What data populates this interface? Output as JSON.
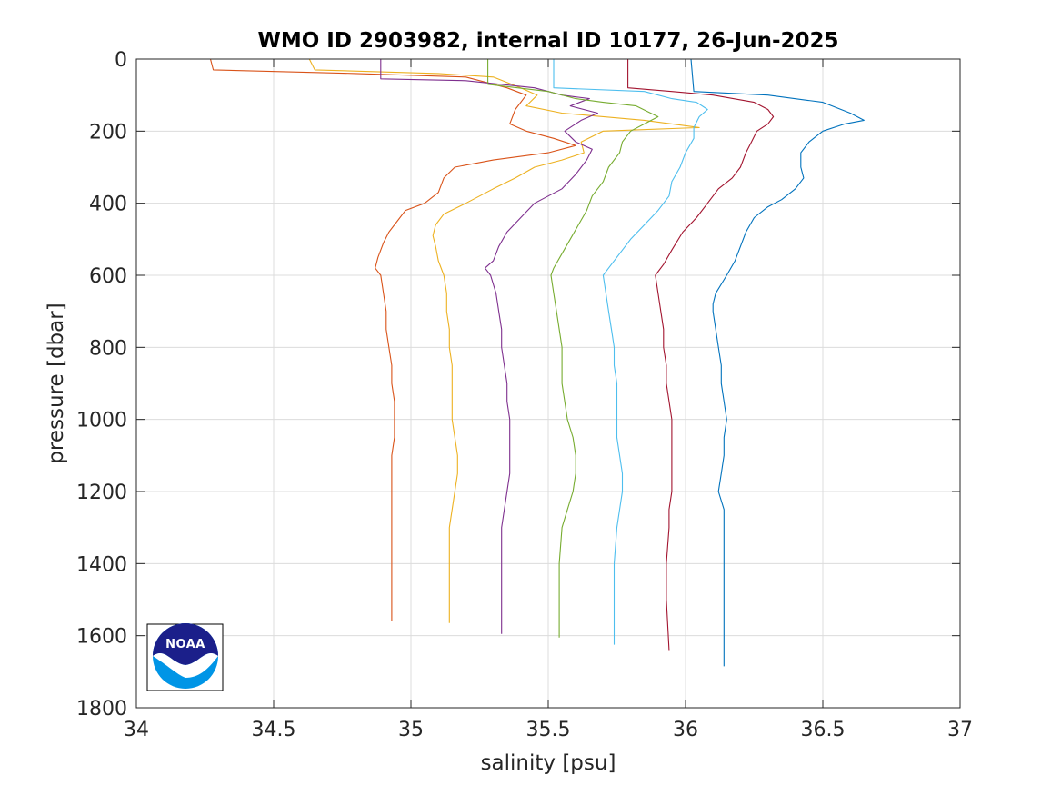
{
  "chart_data": {
    "type": "line",
    "title": "WMO ID 2903982, internal ID 10177, 26-Jun-2025",
    "xlabel": "salinity [psu]",
    "ylabel": "pressure [dbar]",
    "xlim": [
      34,
      37
    ],
    "ylim": [
      0,
      1800
    ],
    "y_reversed": true,
    "grid": true,
    "xticks": [
      "34",
      "34.5",
      "35",
      "35.5",
      "36",
      "36.5",
      "37"
    ],
    "yticks": [
      "0",
      "200",
      "400",
      "600",
      "800",
      "1000",
      "1200",
      "1400",
      "1600",
      "1800"
    ],
    "x_tick_values": [
      34,
      34.5,
      35,
      35.5,
      36,
      36.5,
      37
    ],
    "y_tick_values": [
      0,
      200,
      400,
      600,
      800,
      1000,
      1200,
      1400,
      1600,
      1800
    ],
    "series": [
      {
        "color": "#D95319",
        "points": [
          [
            34.27,
            0
          ],
          [
            34.28,
            30
          ],
          [
            34.8,
            40
          ],
          [
            35.2,
            50
          ],
          [
            35.35,
            80
          ],
          [
            35.42,
            100
          ],
          [
            35.38,
            140
          ],
          [
            35.36,
            180
          ],
          [
            35.42,
            200
          ],
          [
            35.52,
            220
          ],
          [
            35.6,
            240
          ],
          [
            35.5,
            260
          ],
          [
            35.3,
            280
          ],
          [
            35.16,
            300
          ],
          [
            35.12,
            330
          ],
          [
            35.1,
            370
          ],
          [
            35.05,
            400
          ],
          [
            34.98,
            420
          ],
          [
            34.95,
            450
          ],
          [
            34.92,
            480
          ],
          [
            34.9,
            510
          ],
          [
            34.88,
            550
          ],
          [
            34.87,
            580
          ],
          [
            34.89,
            600
          ],
          [
            34.9,
            650
          ],
          [
            34.91,
            700
          ],
          [
            34.91,
            750
          ],
          [
            34.92,
            800
          ],
          [
            34.93,
            850
          ],
          [
            34.93,
            900
          ],
          [
            34.94,
            950
          ],
          [
            34.94,
            1000
          ],
          [
            34.94,
            1050
          ],
          [
            34.93,
            1100
          ],
          [
            34.93,
            1150
          ],
          [
            34.93,
            1200
          ],
          [
            34.93,
            1300
          ],
          [
            34.93,
            1400
          ],
          [
            34.93,
            1500
          ],
          [
            34.93,
            1560
          ]
        ]
      },
      {
        "color": "#EDB120",
        "points": [
          [
            34.63,
            0
          ],
          [
            34.65,
            30
          ],
          [
            35.1,
            40
          ],
          [
            35.3,
            50
          ],
          [
            35.4,
            80
          ],
          [
            35.46,
            100
          ],
          [
            35.42,
            130
          ],
          [
            35.55,
            150
          ],
          [
            35.85,
            170
          ],
          [
            36.05,
            190
          ],
          [
            35.7,
            200
          ],
          [
            35.62,
            230
          ],
          [
            35.63,
            260
          ],
          [
            35.55,
            280
          ],
          [
            35.45,
            300
          ],
          [
            35.38,
            330
          ],
          [
            35.3,
            360
          ],
          [
            35.2,
            400
          ],
          [
            35.12,
            430
          ],
          [
            35.09,
            460
          ],
          [
            35.08,
            490
          ],
          [
            35.09,
            520
          ],
          [
            35.1,
            560
          ],
          [
            35.12,
            600
          ],
          [
            35.13,
            650
          ],
          [
            35.13,
            700
          ],
          [
            35.14,
            750
          ],
          [
            35.14,
            800
          ],
          [
            35.15,
            850
          ],
          [
            35.15,
            900
          ],
          [
            35.15,
            950
          ],
          [
            35.15,
            1000
          ],
          [
            35.16,
            1050
          ],
          [
            35.17,
            1100
          ],
          [
            35.17,
            1150
          ],
          [
            35.16,
            1200
          ],
          [
            35.15,
            1250
          ],
          [
            35.14,
            1300
          ],
          [
            35.14,
            1400
          ],
          [
            35.14,
            1500
          ],
          [
            35.14,
            1565
          ]
        ]
      },
      {
        "color": "#7E2F8E",
        "points": [
          [
            34.89,
            0
          ],
          [
            34.89,
            55
          ],
          [
            35.2,
            60
          ],
          [
            35.45,
            80
          ],
          [
            35.55,
            100
          ],
          [
            35.65,
            110
          ],
          [
            35.58,
            130
          ],
          [
            35.68,
            150
          ],
          [
            35.62,
            170
          ],
          [
            35.56,
            200
          ],
          [
            35.6,
            230
          ],
          [
            35.66,
            250
          ],
          [
            35.64,
            280
          ],
          [
            35.6,
            320
          ],
          [
            35.55,
            360
          ],
          [
            35.45,
            400
          ],
          [
            35.4,
            440
          ],
          [
            35.35,
            480
          ],
          [
            35.32,
            520
          ],
          [
            35.3,
            560
          ],
          [
            35.27,
            580
          ],
          [
            35.29,
            600
          ],
          [
            35.31,
            650
          ],
          [
            35.32,
            700
          ],
          [
            35.33,
            750
          ],
          [
            35.33,
            800
          ],
          [
            35.34,
            850
          ],
          [
            35.35,
            900
          ],
          [
            35.35,
            950
          ],
          [
            35.36,
            1000
          ],
          [
            35.36,
            1050
          ],
          [
            35.36,
            1100
          ],
          [
            35.36,
            1150
          ],
          [
            35.35,
            1200
          ],
          [
            35.34,
            1250
          ],
          [
            35.33,
            1300
          ],
          [
            35.33,
            1400
          ],
          [
            35.33,
            1500
          ],
          [
            35.33,
            1595
          ]
        ]
      },
      {
        "color": "#77AC30",
        "points": [
          [
            35.28,
            0
          ],
          [
            35.28,
            70
          ],
          [
            35.5,
            90
          ],
          [
            35.6,
            110
          ],
          [
            35.7,
            120
          ],
          [
            35.82,
            130
          ],
          [
            35.9,
            160
          ],
          [
            35.85,
            180
          ],
          [
            35.8,
            200
          ],
          [
            35.77,
            230
          ],
          [
            35.76,
            260
          ],
          [
            35.72,
            300
          ],
          [
            35.7,
            340
          ],
          [
            35.66,
            380
          ],
          [
            35.64,
            420
          ],
          [
            35.61,
            460
          ],
          [
            35.58,
            500
          ],
          [
            35.55,
            540
          ],
          [
            35.52,
            580
          ],
          [
            35.51,
            600
          ],
          [
            35.52,
            650
          ],
          [
            35.53,
            700
          ],
          [
            35.54,
            750
          ],
          [
            35.55,
            800
          ],
          [
            35.55,
            850
          ],
          [
            35.55,
            900
          ],
          [
            35.56,
            950
          ],
          [
            35.57,
            1000
          ],
          [
            35.59,
            1050
          ],
          [
            35.6,
            1100
          ],
          [
            35.6,
            1150
          ],
          [
            35.59,
            1200
          ],
          [
            35.57,
            1250
          ],
          [
            35.55,
            1300
          ],
          [
            35.54,
            1400
          ],
          [
            35.54,
            1500
          ],
          [
            35.54,
            1605
          ]
        ]
      },
      {
        "color": "#4DBEEE",
        "points": [
          [
            35.52,
            0
          ],
          [
            35.52,
            80
          ],
          [
            35.85,
            90
          ],
          [
            35.95,
            110
          ],
          [
            36.04,
            120
          ],
          [
            36.08,
            140
          ],
          [
            36.05,
            160
          ],
          [
            36.03,
            190
          ],
          [
            36.03,
            220
          ],
          [
            36.0,
            260
          ],
          [
            35.98,
            300
          ],
          [
            35.95,
            340
          ],
          [
            35.94,
            380
          ],
          [
            35.9,
            420
          ],
          [
            35.85,
            460
          ],
          [
            35.8,
            500
          ],
          [
            35.76,
            540
          ],
          [
            35.72,
            580
          ],
          [
            35.7,
            600
          ],
          [
            35.71,
            650
          ],
          [
            35.72,
            700
          ],
          [
            35.73,
            750
          ],
          [
            35.74,
            800
          ],
          [
            35.74,
            850
          ],
          [
            35.75,
            900
          ],
          [
            35.75,
            950
          ],
          [
            35.75,
            1000
          ],
          [
            35.75,
            1050
          ],
          [
            35.76,
            1100
          ],
          [
            35.77,
            1150
          ],
          [
            35.77,
            1200
          ],
          [
            35.76,
            1250
          ],
          [
            35.75,
            1300
          ],
          [
            35.74,
            1400
          ],
          [
            35.74,
            1500
          ],
          [
            35.74,
            1625
          ]
        ]
      },
      {
        "color": "#A2142F",
        "points": [
          [
            35.79,
            0
          ],
          [
            35.79,
            80
          ],
          [
            35.95,
            90
          ],
          [
            36.1,
            100
          ],
          [
            36.25,
            120
          ],
          [
            36.3,
            140
          ],
          [
            36.32,
            160
          ],
          [
            36.3,
            180
          ],
          [
            36.26,
            200
          ],
          [
            36.24,
            230
          ],
          [
            36.22,
            260
          ],
          [
            36.2,
            300
          ],
          [
            36.17,
            330
          ],
          [
            36.12,
            360
          ],
          [
            36.08,
            400
          ],
          [
            36.04,
            440
          ],
          [
            35.99,
            480
          ],
          [
            35.95,
            530
          ],
          [
            35.92,
            570
          ],
          [
            35.89,
            600
          ],
          [
            35.9,
            650
          ],
          [
            35.91,
            700
          ],
          [
            35.92,
            750
          ],
          [
            35.92,
            800
          ],
          [
            35.93,
            850
          ],
          [
            35.93,
            900
          ],
          [
            35.94,
            950
          ],
          [
            35.95,
            1000
          ],
          [
            35.95,
            1050
          ],
          [
            35.95,
            1100
          ],
          [
            35.95,
            1150
          ],
          [
            35.95,
            1200
          ],
          [
            35.94,
            1250
          ],
          [
            35.94,
            1300
          ],
          [
            35.93,
            1400
          ],
          [
            35.93,
            1500
          ],
          [
            35.94,
            1640
          ]
        ]
      },
      {
        "color": "#0072BD",
        "points": [
          [
            36.02,
            0
          ],
          [
            36.03,
            90
          ],
          [
            36.3,
            100
          ],
          [
            36.5,
            120
          ],
          [
            36.6,
            150
          ],
          [
            36.65,
            170
          ],
          [
            36.58,
            180
          ],
          [
            36.5,
            200
          ],
          [
            36.45,
            230
          ],
          [
            36.42,
            260
          ],
          [
            36.42,
            300
          ],
          [
            36.43,
            330
          ],
          [
            36.4,
            360
          ],
          [
            36.35,
            390
          ],
          [
            36.3,
            410
          ],
          [
            36.25,
            440
          ],
          [
            36.22,
            480
          ],
          [
            36.2,
            520
          ],
          [
            36.18,
            560
          ],
          [
            36.15,
            600
          ],
          [
            36.11,
            650
          ],
          [
            36.1,
            680
          ],
          [
            36.1,
            700
          ],
          [
            36.11,
            750
          ],
          [
            36.12,
            800
          ],
          [
            36.13,
            850
          ],
          [
            36.13,
            900
          ],
          [
            36.14,
            950
          ],
          [
            36.15,
            1000
          ],
          [
            36.14,
            1050
          ],
          [
            36.14,
            1100
          ],
          [
            36.13,
            1150
          ],
          [
            36.12,
            1200
          ],
          [
            36.14,
            1250
          ],
          [
            36.14,
            1300
          ],
          [
            36.14,
            1400
          ],
          [
            36.14,
            1500
          ],
          [
            36.14,
            1600
          ],
          [
            36.14,
            1685
          ]
        ]
      }
    ]
  },
  "logo": {
    "text": "NOAA",
    "colors": {
      "navy": "#1B1F8A",
      "sky": "#0095E6"
    }
  }
}
